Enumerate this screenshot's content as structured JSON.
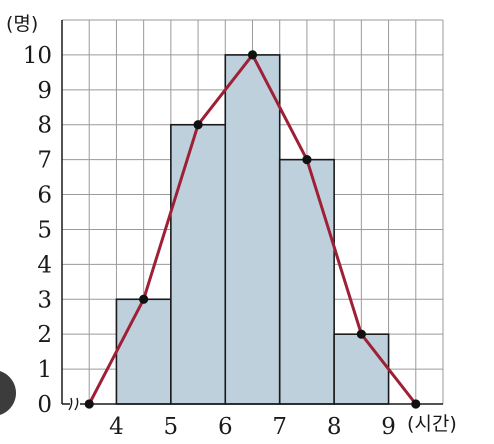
{
  "chart_data": {
    "type": "bar",
    "subtype": "histogram-with-frequency-polygon",
    "y_unit_label": "(명)",
    "x_unit_label": "(시간)",
    "categories": [
      "4~5",
      "5~6",
      "6~7",
      "7~8",
      "8~9"
    ],
    "class_boundaries": [
      4,
      5,
      6,
      7,
      8,
      9
    ],
    "values": [
      3,
      8,
      10,
      7,
      2
    ],
    "polygon": {
      "x": [
        3.5,
        4.5,
        5.5,
        6.5,
        7.5,
        8.5,
        9.5
      ],
      "y": [
        0,
        3,
        8,
        10,
        7,
        2,
        0
      ]
    },
    "x_ticks": [
      "4",
      "5",
      "6",
      "7",
      "8",
      "9"
    ],
    "y_ticks": [
      "0",
      "1",
      "2",
      "3",
      "4",
      "5",
      "6",
      "7",
      "8",
      "9",
      "10"
    ],
    "xlim": [
      3,
      10
    ],
    "ylim": [
      0,
      11
    ],
    "x_axis_break": true,
    "grid": true,
    "colors": {
      "bar": "#bfd0dd",
      "polygon": "#9e2036",
      "grid": "#9a9a9a"
    }
  }
}
